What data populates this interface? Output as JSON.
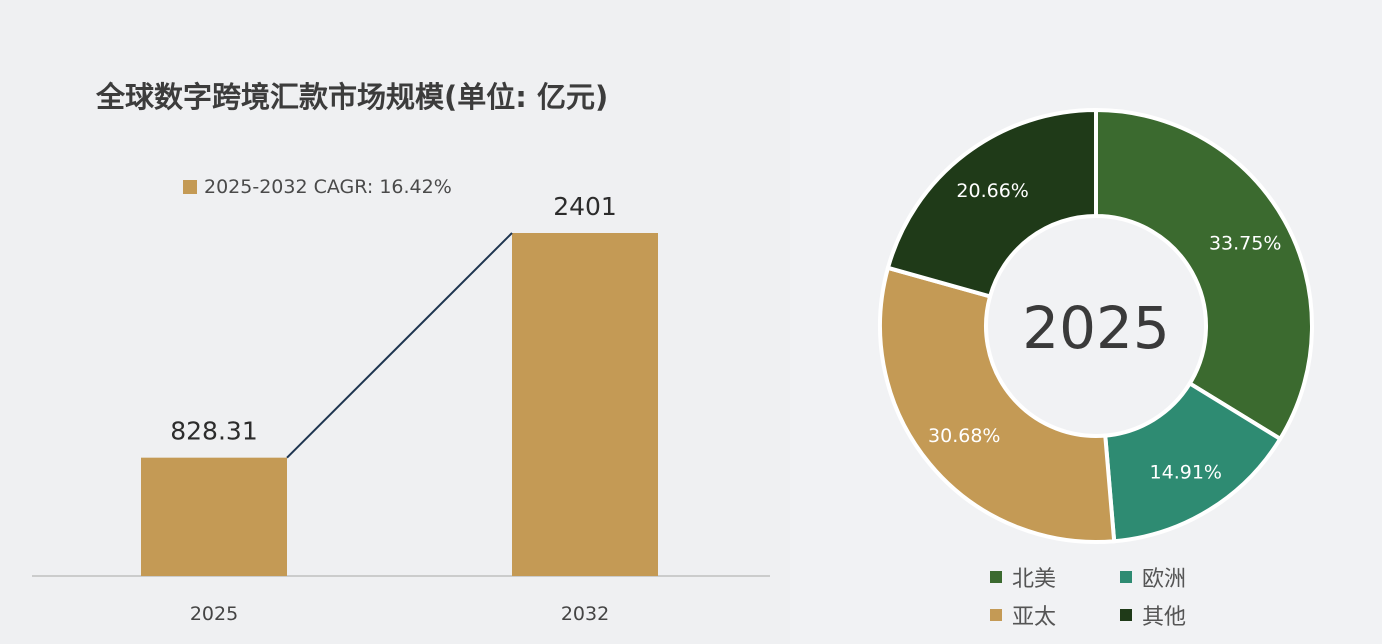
{
  "bar_panel": {
    "title": "全球数字跨境汇款市场规模(单位: 亿元)",
    "legend_label": "2025-2032 CAGR: 16.42%"
  },
  "donut_panel": {
    "center_label": "2025"
  },
  "colors": {
    "bar": "#c49a55",
    "connector": "#1e3550",
    "baseline": "#bfbfbf",
    "north_america": "#3b6a2f",
    "europe": "#2e8b72",
    "asia_pacific": "#c49a55",
    "other": "#1f3a18"
  },
  "chart_data": [
    {
      "type": "bar",
      "title": "全球数字跨境汇款市场规模(单位: 亿元)",
      "categories": [
        "2025",
        "2032"
      ],
      "series": [
        {
          "name": "2025-2032 CAGR: 16.42%",
          "values": [
            828.31,
            2401
          ],
          "value_labels": [
            "828.31",
            "2401"
          ]
        }
      ],
      "ylim": [
        0,
        2900
      ],
      "grid": false,
      "legend_position": "top",
      "annotation": "line connecting the tops of the two bars"
    },
    {
      "type": "pie",
      "variant": "donut",
      "center_label": "2025",
      "slices": [
        {
          "label": "北美",
          "value": 33.75,
          "value_label": "33.75%",
          "color": "#3b6a2f"
        },
        {
          "label": "欧洲",
          "value": 14.91,
          "value_label": "14.91%",
          "color": "#2e8b72"
        },
        {
          "label": "亚太",
          "value": 30.68,
          "value_label": "30.68%",
          "color": "#c49a55"
        },
        {
          "label": "其他",
          "value": 20.66,
          "value_label": "20.66%",
          "color": "#1f3a18"
        }
      ],
      "legend_position": "bottom",
      "legend": [
        "北美",
        "欧洲",
        "亚太",
        "其他"
      ]
    }
  ]
}
